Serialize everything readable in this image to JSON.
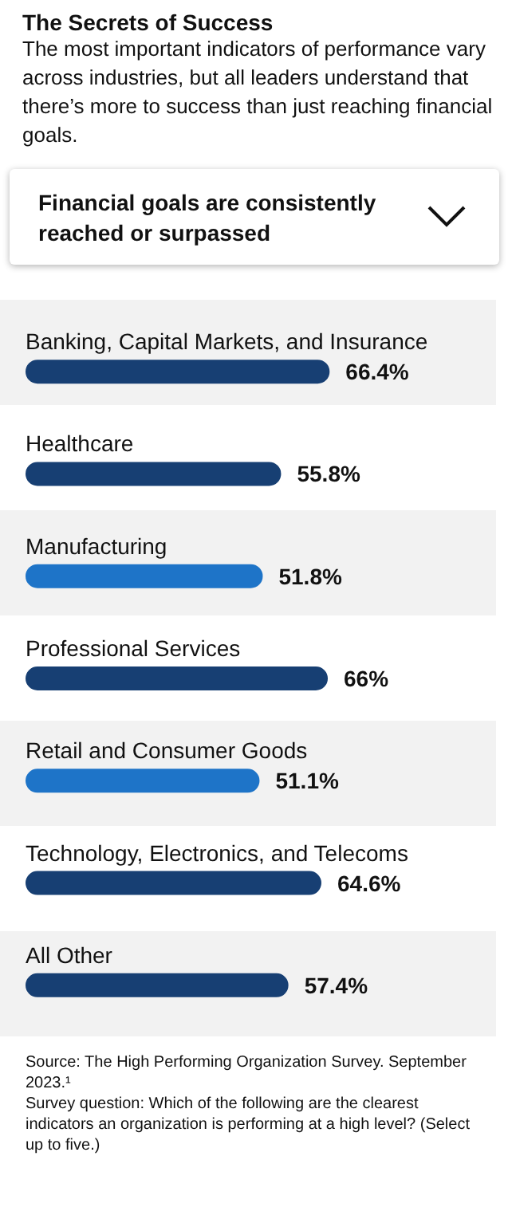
{
  "chart_data": {
    "type": "bar",
    "orientation": "horizontal",
    "title": "The Secrets of Success",
    "subtitle": "The most important indicators of performance vary across industries, but all leaders understand that there’s more to success than just reaching financial goals.",
    "annotations": [
      "Financial goals are consistently reached or surpassed",
      "Source: The High Performing Organization Survey. September 2023.¹",
      "Survey question: Which of the following are the clearest indicators an organization is performing at a high level? (Select up to five.)"
    ],
    "categories": [
      "Banking, Capital Markets, and Insurance",
      "Healthcare",
      "Manufacturing",
      "Professional Services",
      "Retail and Consumer Goods",
      "Technology, Electronics, and Telecoms",
      "All Other"
    ],
    "values": [
      66.4,
      55.8,
      51.8,
      66,
      51.1,
      64.6,
      57.4
    ],
    "value_labels": [
      "66.4%",
      "55.8%",
      "51.8%",
      "66%",
      "51.1%",
      "64.6%",
      "57.4%"
    ],
    "colors": [
      "#173f73",
      "#173f73",
      "#1e74c8",
      "#173f73",
      "#1e74c8",
      "#173f73",
      "#173f73"
    ],
    "tick_labels": false
  }
}
